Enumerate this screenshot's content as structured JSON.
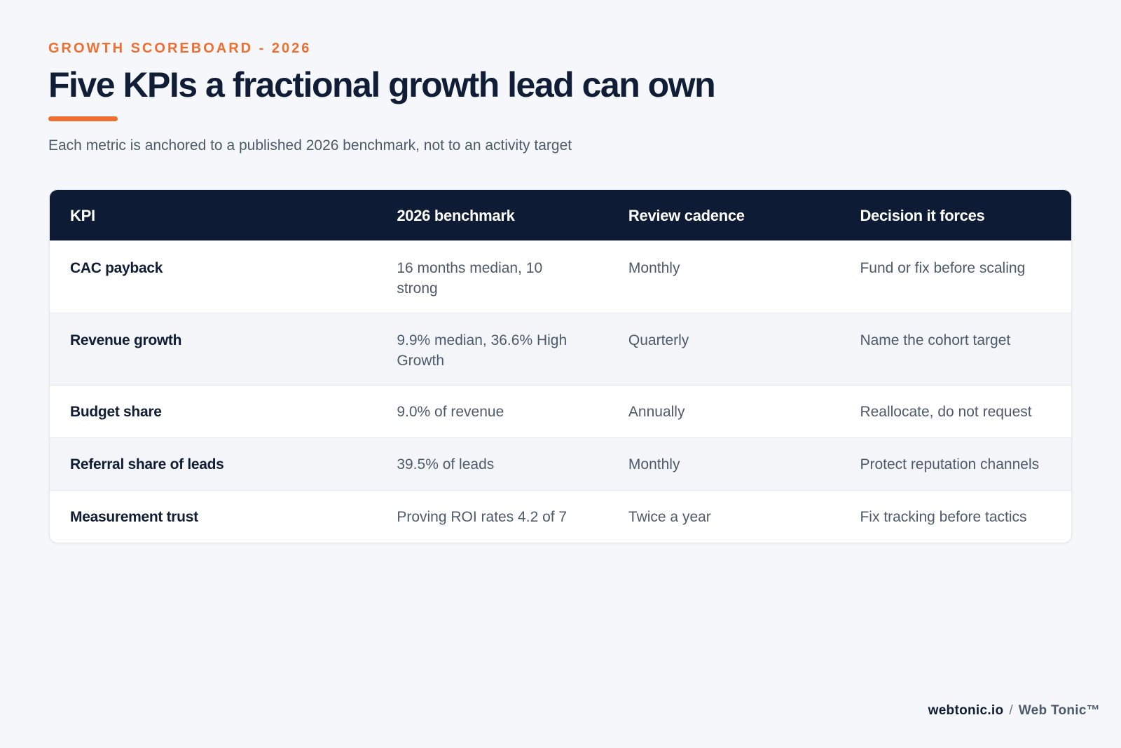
{
  "header": {
    "eyebrow": "GROWTH SCOREBOARD - 2026",
    "title": "Five KPIs a fractional growth lead can own",
    "subtitle": "Each metric is anchored to a published 2026 benchmark, not to an activity target"
  },
  "table": {
    "columns": [
      "KPI",
      "2026 benchmark",
      "Review cadence",
      "Decision it forces"
    ],
    "rows": [
      [
        "CAC payback",
        "16 months median, 10 strong",
        "Monthly",
        "Fund or fix before scaling"
      ],
      [
        "Revenue growth",
        "9.9% median, 36.6% High Growth",
        "Quarterly",
        "Name the cohort target"
      ],
      [
        "Budget share",
        "9.0% of revenue",
        "Annually",
        "Reallocate, do not request"
      ],
      [
        "Referral share of leads",
        "39.5% of leads",
        "Monthly",
        "Protect reputation channels"
      ],
      [
        "Measurement trust",
        "Proving ROI rates 4.2 of 7",
        "Twice a year",
        "Fix tracking before tactics"
      ]
    ]
  },
  "footer": {
    "domain": "webtonic.io",
    "separator": "/",
    "brand": "Web Tonic™"
  },
  "colors": {
    "accent": "#ef6f31",
    "navy": "#0e1b34",
    "background": "#f5f7fa",
    "muted_text": "#4d5a6c",
    "alt_row": "#f3f5f9"
  }
}
